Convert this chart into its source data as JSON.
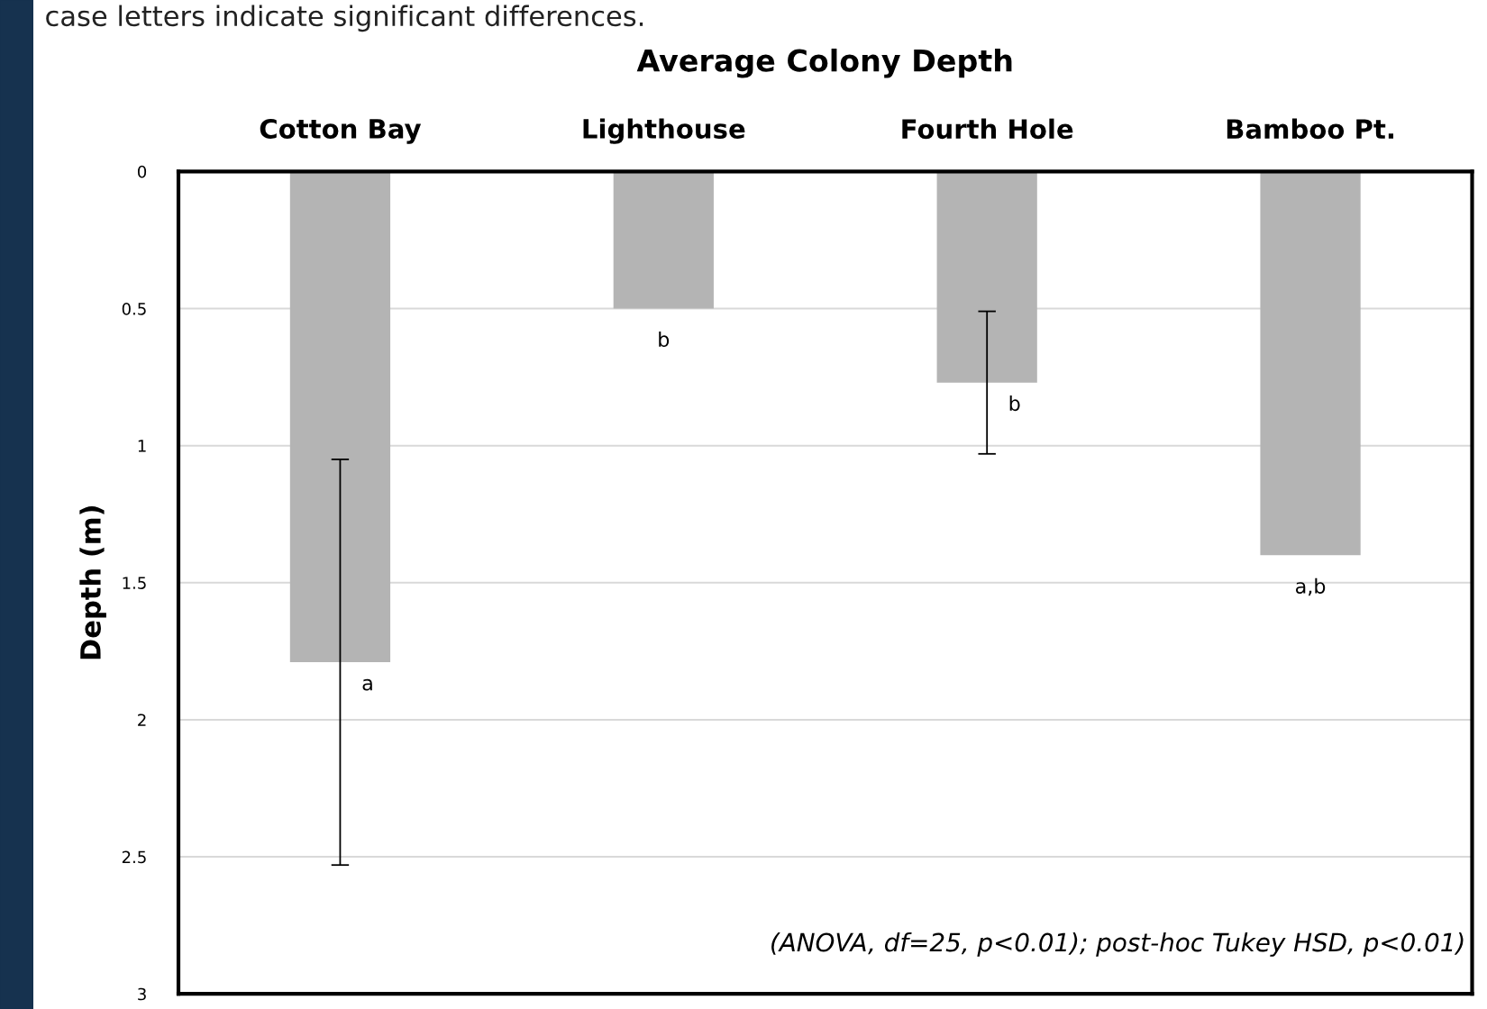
{
  "chart_data": {
    "type": "bar",
    "title": "Average Colony Depth",
    "ylabel": "Depth (m)",
    "categories": [
      "Cotton Bay",
      "Lighthouse",
      "Fourth Hole",
      "Bamboo Pt."
    ],
    "values": [
      1.79,
      0.5,
      0.77,
      1.4
    ],
    "errors": [
      0.74,
      null,
      0.26,
      null
    ],
    "color": "#b4b4b4",
    "ylim": [
      3,
      0
    ],
    "yticks": [
      0,
      0.5,
      1,
      1.5,
      2,
      2.5,
      3
    ],
    "grid": "y",
    "annotations": [
      {
        "text": "a",
        "x": "Cotton Bay",
        "y": 1.79
      },
      {
        "text": "b",
        "x": "Lighthouse",
        "y": 0.5
      },
      {
        "text": "b",
        "x": "Fourth Hole",
        "y": 0.77
      },
      {
        "text": "a,b",
        "x": "Bamboo Pt.",
        "y": 1.4
      },
      "(ANOVA, df=25, p<0.01); post-hoc Tukey HSD, p<0.01)",
      "case letters indicate significant differences."
    ]
  }
}
